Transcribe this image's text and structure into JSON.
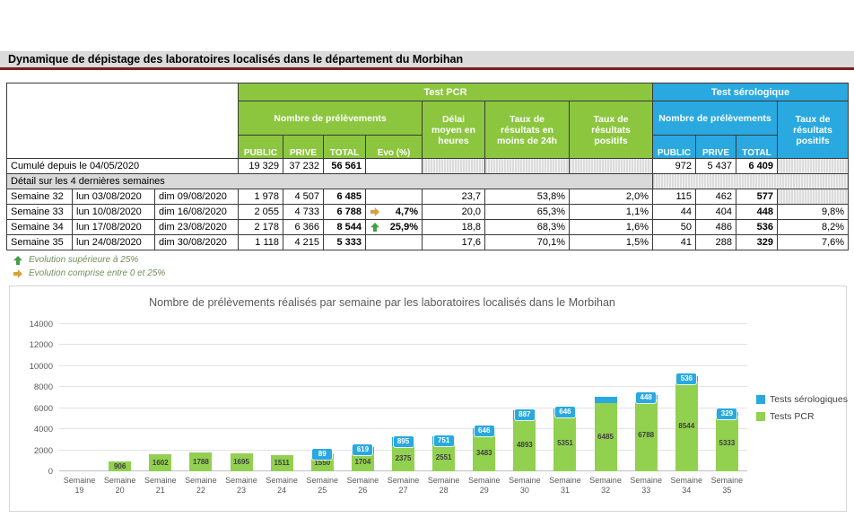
{
  "page": {
    "title": "Dynamique de dépistage des laboratoires localisés dans le département du Morbihan"
  },
  "colors": {
    "pcr_green": "#8cc63f",
    "sero_blue": "#29a9e0",
    "bar_green": "#92d050",
    "bar_blue": "#29a9e0",
    "arrow_up_green": "#3fa045",
    "arrow_right_gold": "#d9a13b",
    "detail_band_gray": "#d9d9d9",
    "title_underline": "#7b2020"
  },
  "icons": {
    "up_arrow": "up-arrow-icon",
    "right_arrow": "right-arrow-icon"
  },
  "table": {
    "headers": {
      "test_pcr": "Test PCR",
      "test_serologique": "Test sérologique",
      "nb_prelevements_pcr": "Nombre de prélèvements",
      "nb_prelevements_sero": "Nombre de prélèvements",
      "public_pcr": "PUBLIC",
      "prive_pcr": "PRIVE",
      "total_pcr": "TOTAL",
      "evo": "Evo (%)",
      "delai_moyen": "Délai moyen en heures",
      "taux_24h": "Taux de résultats en moins de 24h",
      "taux_positifs_pcr": "Taux de résultats positifs",
      "public_sero": "PUBLIC",
      "prive_sero": "PRIVE",
      "total_sero": "TOTAL",
      "taux_positifs_sero": "Taux de résultats positifs"
    },
    "cumulative_row": {
      "label": "Cumulé depuis le 04/05/2020",
      "pcr_public": "19 329",
      "pcr_prive": "37 232",
      "pcr_total": "56 561",
      "sero_public": "972",
      "sero_prive": "5 437",
      "sero_total": "6 409"
    },
    "detail_label": "Détail sur les 4 dernières semaines",
    "week_rows": [
      {
        "week": "Semaine 32",
        "from": "lun 03/08/2020",
        "to": "dim 09/08/2020",
        "pcr_public": "1 978",
        "pcr_prive": "4 507",
        "pcr_total": "6 485",
        "evo": "",
        "evo_arrow": "",
        "delai": "23,7",
        "taux_24h": "53,8%",
        "taux_positifs": "2,0%",
        "sero_public": "115",
        "sero_prive": "462",
        "sero_total": "577",
        "sero_taux_positifs": ""
      },
      {
        "week": "Semaine 33",
        "from": "lun 10/08/2020",
        "to": "dim 16/08/2020",
        "pcr_public": "2 055",
        "pcr_prive": "4 733",
        "pcr_total": "6 788",
        "evo": "4,7%",
        "evo_arrow": "right",
        "delai": "20,0",
        "taux_24h": "65,3%",
        "taux_positifs": "1,1%",
        "sero_public": "44",
        "sero_prive": "404",
        "sero_total": "448",
        "sero_taux_positifs": "9,8%"
      },
      {
        "week": "Semaine 34",
        "from": "lun 17/08/2020",
        "to": "dim 23/08/2020",
        "pcr_public": "2 178",
        "pcr_prive": "6 366",
        "pcr_total": "8 544",
        "evo": "25,9%",
        "evo_arrow": "up",
        "delai": "18,8",
        "taux_24h": "68,3%",
        "taux_positifs": "1,6%",
        "sero_public": "50",
        "sero_prive": "486",
        "sero_total": "536",
        "sero_taux_positifs": "8,2%"
      },
      {
        "week": "Semaine 35",
        "from": "lun 24/08/2020",
        "to": "dim 30/08/2020",
        "pcr_public": "1 118",
        "pcr_prive": "4 215",
        "pcr_total": "5 333",
        "evo": "",
        "evo_arrow": "",
        "delai": "17,6",
        "taux_24h": "70,1%",
        "taux_positifs": "1,5%",
        "sero_public": "41",
        "sero_prive": "288",
        "sero_total": "329",
        "sero_taux_positifs": "7,6%"
      }
    ],
    "footnotes": [
      {
        "icon": "up-arrow-icon",
        "text": "Evolution supérieure à 25%"
      },
      {
        "icon": "right-arrow-icon",
        "text": "Evolution comprise entre 0 et 25%"
      }
    ]
  },
  "chart_data": {
    "type": "bar",
    "stacked": true,
    "title": "Nombre de prélèvements réalisés par semaine par les laboratoires localisés dans le Morbihan",
    "categories": [
      "Semaine 19",
      "Semaine 20",
      "Semaine 21",
      "Semaine 22",
      "Semaine 23",
      "Semaine 24",
      "Semaine 25",
      "Semaine 26",
      "Semaine 27",
      "Semaine 28",
      "Semaine 29",
      "Semaine 30",
      "Semaine 31",
      "Semaine 32",
      "Semaine 33",
      "Semaine 34",
      "Semaine 35"
    ],
    "series": [
      {
        "name": "Tests PCR",
        "color": "#92d050",
        "values": [
          0,
          906,
          1602,
          1788,
          1695,
          1511,
          1550,
          1704,
          2375,
          2551,
          3483,
          4893,
          5351,
          6485,
          6788,
          8544,
          5333
        ],
        "labels": [
          "",
          "906",
          "1602",
          "1788",
          "1695",
          "1511",
          "1550",
          "1704",
          "2375",
          "2551",
          "3483",
          "4893",
          "5351",
          "6485",
          "6788",
          "8544",
          "5333"
        ]
      },
      {
        "name": "Tests sérologiques",
        "color": "#29a9e0",
        "values": [
          0,
          0,
          0,
          0,
          0,
          0,
          89,
          619,
          895,
          751,
          646,
          887,
          646,
          577,
          448,
          536,
          329
        ],
        "labels": [
          "",
          "",
          "",
          "",
          "",
          "",
          "89",
          "619",
          "895",
          "751",
          "646",
          "887",
          "646",
          "",
          "448",
          "536",
          "329"
        ]
      }
    ],
    "legend_items": [
      {
        "label": "Tests sérologiques",
        "color": "#29a9e0"
      },
      {
        "label": "Tests PCR",
        "color": "#92d050"
      }
    ],
    "legend_position": "right",
    "xlabel": "",
    "ylabel": "",
    "ylim": [
      0,
      14000
    ],
    "ytick_step": 2000,
    "grid": true
  }
}
